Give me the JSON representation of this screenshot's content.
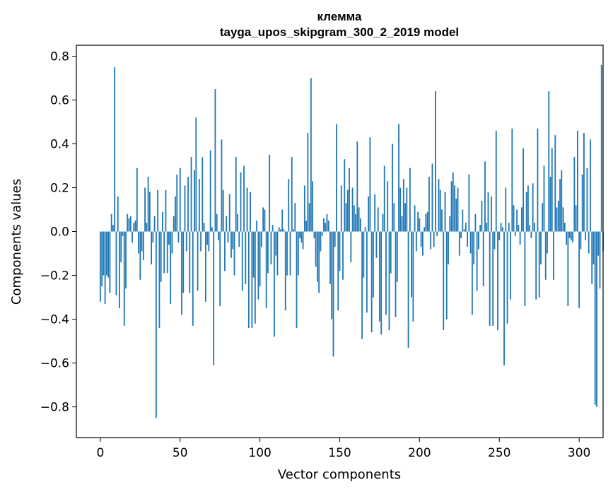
{
  "chart_data": {
    "type": "bar",
    "title_line1": "клемма",
    "title_line2": "tayga_upos_skipgram_300_2_2019 model",
    "xlabel": "Vector components",
    "ylabel": "Components values",
    "xlim": [
      -15,
      315
    ],
    "ylim": [
      -0.94,
      0.85
    ],
    "xticks": [
      0,
      50,
      100,
      150,
      200,
      250,
      300
    ],
    "xtick_labels": [
      "0",
      "50",
      "100",
      "150",
      "200",
      "250",
      "300"
    ],
    "yticks": [
      -0.8,
      -0.6,
      -0.4,
      -0.2,
      0.0,
      0.2,
      0.4,
      0.6,
      0.8
    ],
    "ytick_labels": [
      "−0.8",
      "−0.6",
      "−0.4",
      "−0.2",
      "0.0",
      "0.2",
      "0.4",
      "0.6",
      "0.8"
    ],
    "bar_color": "#1f77b4",
    "values": [
      -0.32,
      -0.25,
      -0.2,
      -0.33,
      -0.2,
      -0.21,
      -0.28,
      0.08,
      0.03,
      0.75,
      -0.29,
      0.16,
      -0.35,
      -0.14,
      -0.02,
      -0.43,
      -0.26,
      0.08,
      0.06,
      0.07,
      -0.05,
      0.04,
      0.05,
      0.29,
      -0.1,
      -0.22,
      -0.09,
      -0.13,
      0.2,
      0.04,
      0.25,
      0.18,
      -0.15,
      -0.05,
      0.07,
      -0.85,
      0.19,
      -0.44,
      -0.23,
      0.09,
      -0.19,
      0.19,
      -0.19,
      -0.06,
      -0.33,
      -0.1,
      0.07,
      0.16,
      0.26,
      -0.05,
      0.29,
      -0.38,
      -0.28,
      0.21,
      -0.09,
      0.25,
      -0.28,
      0.34,
      -0.43,
      0.28,
      0.52,
      -0.27,
      0.24,
      -0.09,
      0.34,
      0.04,
      -0.32,
      -0.06,
      -0.09,
      0.37,
      0.02,
      -0.61,
      0.65,
      0.08,
      -0.04,
      -0.34,
      0.42,
      0.19,
      -0.18,
      0.07,
      -0.05,
      0.17,
      -0.12,
      -0.08,
      -0.2,
      0.34,
      0.08,
      -0.07,
      0.27,
      -0.27,
      0.3,
      -0.24,
      0.2,
      -0.44,
      0.18,
      -0.44,
      -0.21,
      -0.42,
      0.05,
      -0.31,
      -0.25,
      -0.07,
      0.11,
      0.1,
      -0.35,
      -0.19,
      0.35,
      -0.15,
      0.03,
      -0.48,
      -0.11,
      -0.2,
      0.02,
      0.01,
      0.1,
      0.01,
      -0.36,
      -0.2,
      0.24,
      -0.2,
      0.34,
      0.01,
      0.13,
      -0.44,
      -0.2,
      -0.03,
      -0.05,
      -0.08,
      0.21,
      0.05,
      0.45,
      0.13,
      0.7,
      0.23,
      -0.03,
      -0.16,
      -0.23,
      -0.28,
      -0.09,
      -0.02,
      0.06,
      0.04,
      0.08,
      0.05,
      -0.24,
      -0.4,
      -0.57,
      -0.07,
      0.49,
      -0.36,
      -0.18,
      0.21,
      -0.22,
      0.33,
      0.13,
      0.19,
      0.29,
      -0.14,
      0.2,
      0.12,
      0.08,
      0.41,
      0.11,
      0.06,
      -0.49,
      -0.21,
      0.02,
      -0.37,
      0.16,
      0.43,
      -0.46,
      -0.3,
      0.17,
      -0.12,
      0.11,
      -0.41,
      -0.47,
      0.08,
      0.3,
      -0.38,
      0.23,
      -0.45,
      -0.19,
      0.4,
      0.13,
      -0.39,
      -0.23,
      0.49,
      0.2,
      0.07,
      0.24,
      0.13,
      0.2,
      -0.53,
      0.29,
      -0.3,
      -0.41,
      0.12,
      -0.09,
      0.09,
      0.06,
      -0.07,
      -0.11,
      0.02,
      0.08,
      0.09,
      0.25,
      -0.08,
      0.31,
      -0.07,
      0.64,
      -0.02,
      0.24,
      0.19,
      0.1,
      -0.45,
      0.18,
      -0.4,
      -0.15,
      0.07,
      0.23,
      0.27,
      0.21,
      0.15,
      0.2,
      -0.11,
      -0.03,
      0.1,
      0.01,
      0.04,
      -0.07,
      0.26,
      -0.1,
      -0.38,
      -0.15,
      0.08,
      -0.27,
      -0.08,
      0.03,
      0.14,
      -0.25,
      0.32,
      0.04,
      0.18,
      -0.43,
      0.16,
      -0.43,
      -0.08,
      0.46,
      -0.45,
      -0.04,
      0.04,
      0.02,
      -0.61,
      0.2,
      -0.42,
      0.04,
      -0.31,
      0.47,
      0.12,
      -0.02,
      0.1,
      0.03,
      -0.06,
      0.11,
      0.38,
      -0.34,
      0.18,
      0.21,
      0.03,
      -0.03,
      0.22,
      0.04,
      -0.31,
      0.47,
      -0.3,
      -0.15,
      0.13,
      0.3,
      -0.22,
      -0.1,
      0.64,
      0.25,
      0.38,
      -0.22,
      0.44,
      0.11,
      0.14,
      0.24,
      0.28,
      0.11,
      0.04,
      -0.06,
      -0.34,
      -0.03,
      -0.04,
      -0.05,
      0.34,
      0.12,
      0.46,
      -0.35,
      -0.08,
      0.26,
      0.45,
      -0.04,
      0.29,
      -0.1,
      0.42,
      -0.24,
      -0.15,
      -0.79,
      -0.8,
      -0.11,
      -0.26,
      0.76,
      -0.09
    ]
  }
}
